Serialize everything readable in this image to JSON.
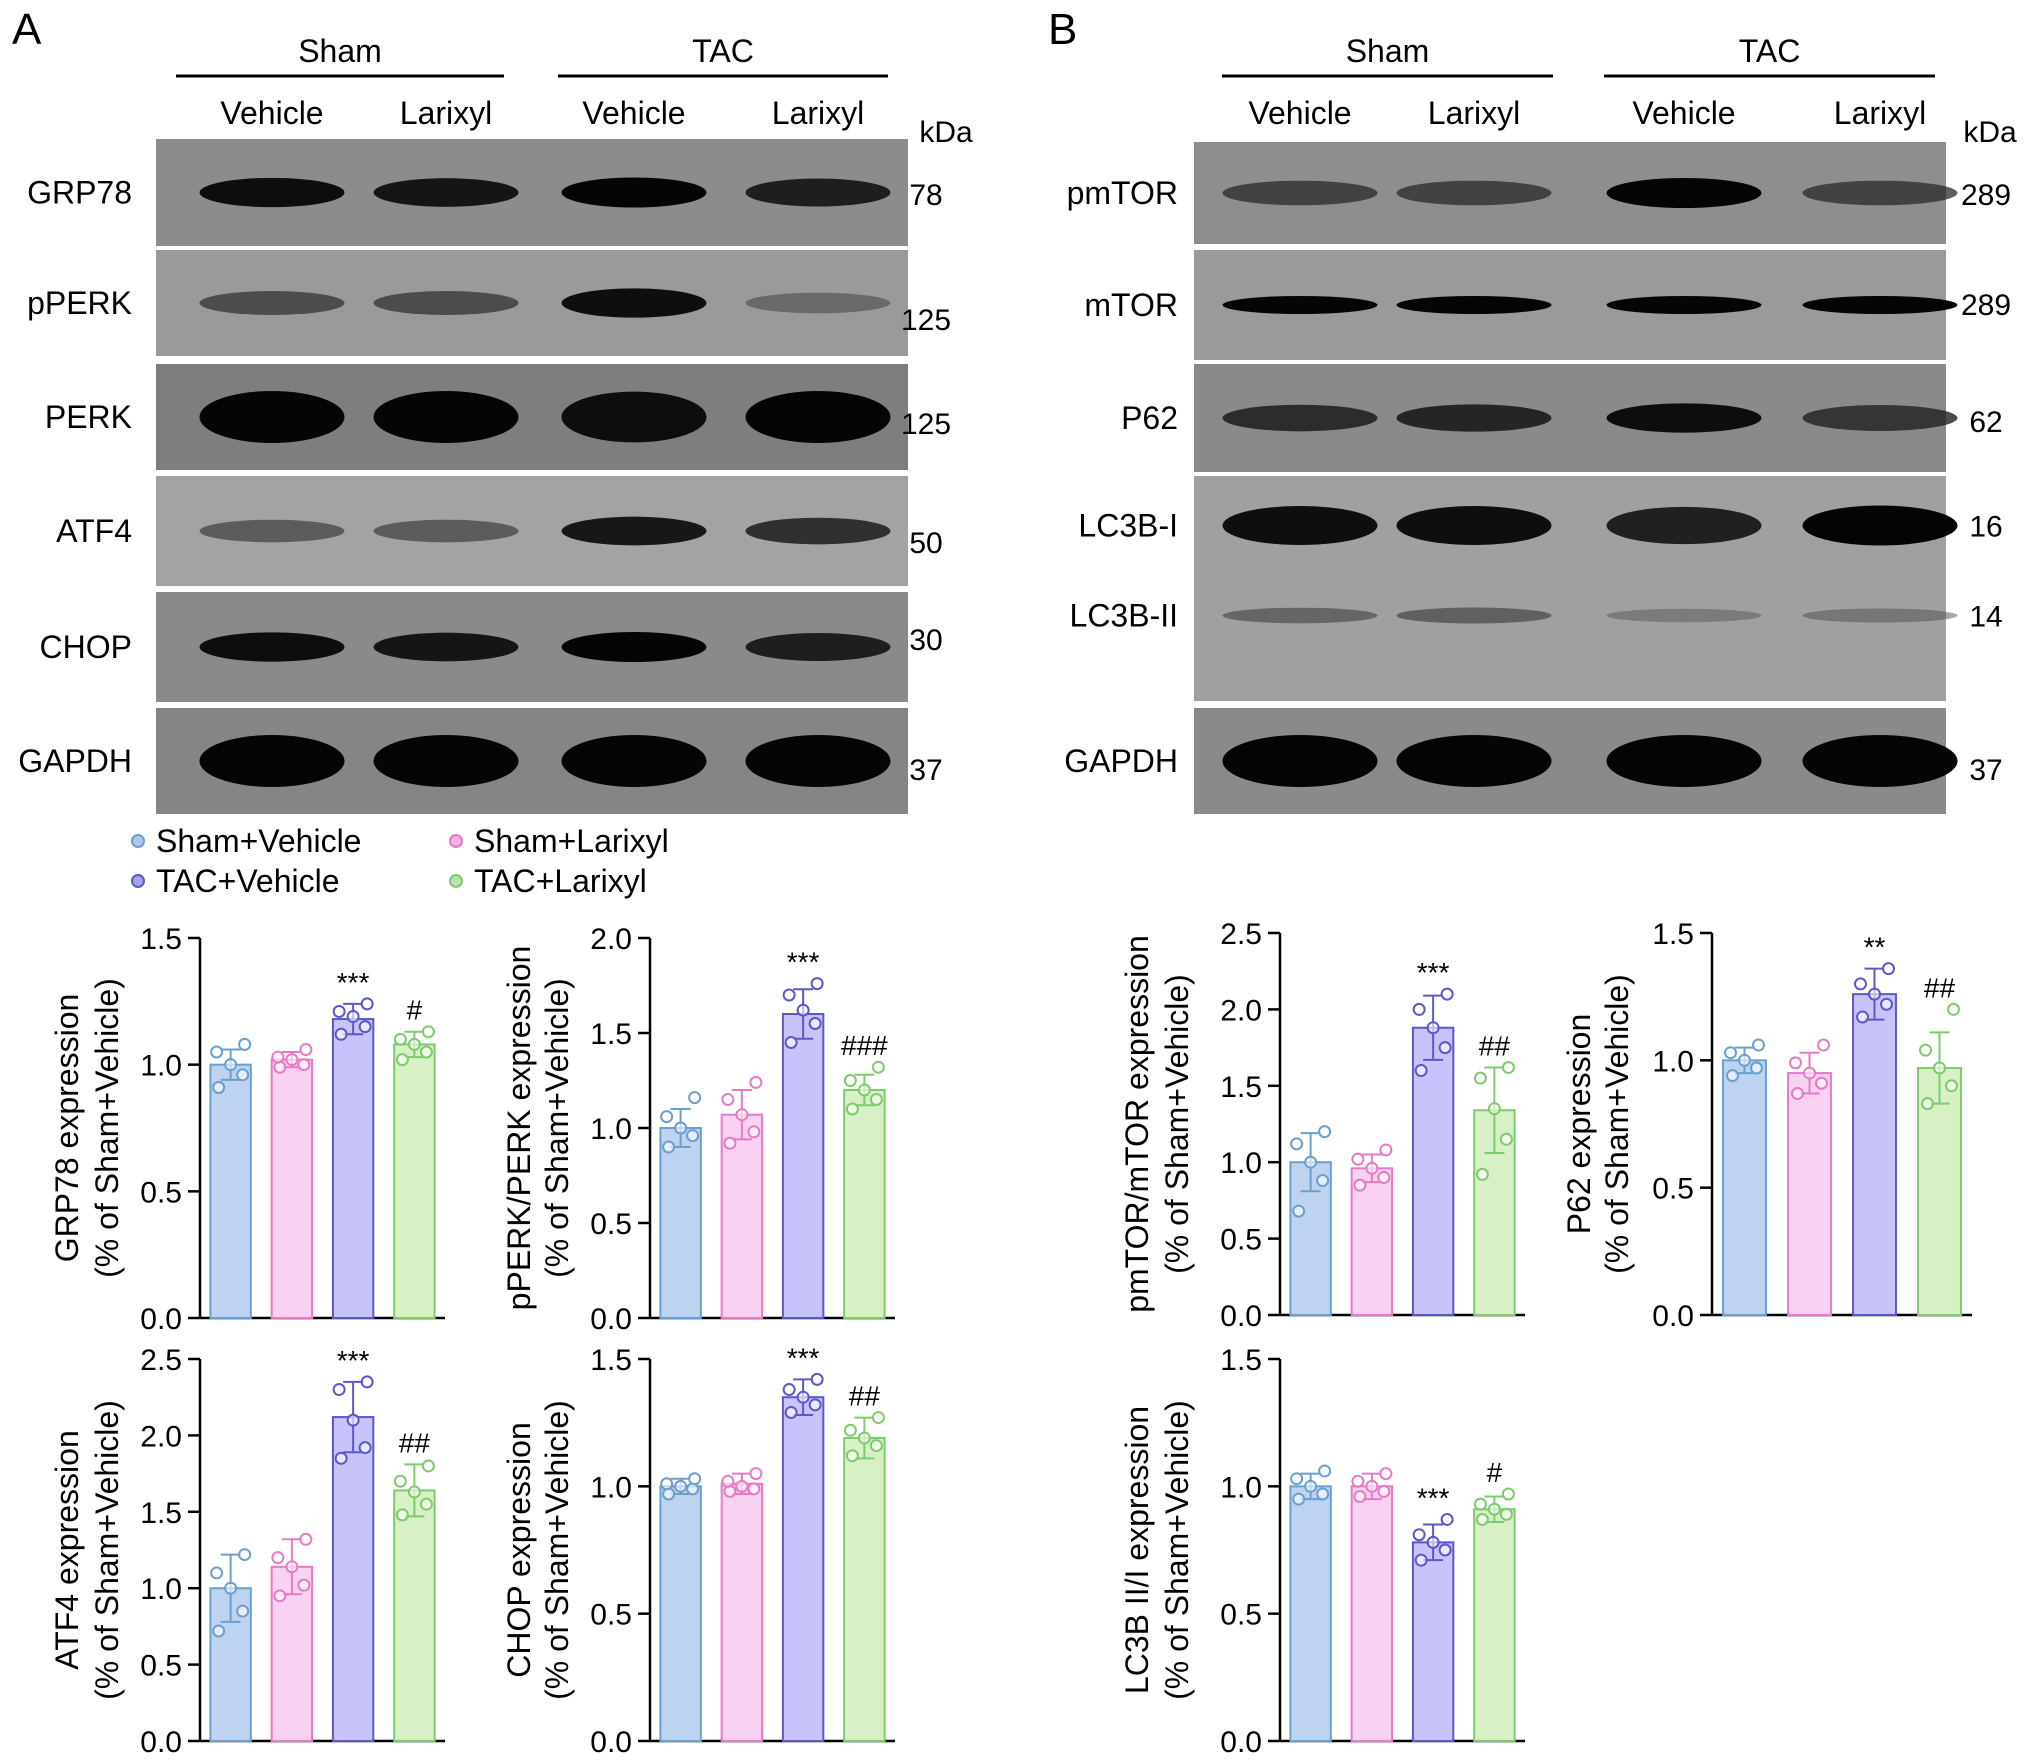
{
  "panels": {
    "A": {
      "letter": "A",
      "groups": [
        "Sham",
        "TAC"
      ],
      "lanes": [
        "Vehicle",
        "Larixyl",
        "Vehicle",
        "Larixyl"
      ],
      "kda_label": "kDa",
      "blots": [
        {
          "name": "GRP78",
          "kda": "78",
          "background": "#8c8c8c",
          "intensity": [
            0.95,
            0.9,
            1.0,
            0.85
          ],
          "lanes_shape": "band"
        },
        {
          "name": "pPERK",
          "kda": "125",
          "background": "#9a9a9a",
          "intensity": [
            0.55,
            0.55,
            0.95,
            0.3
          ],
          "lanes_shape": "band"
        },
        {
          "name": "PERK",
          "kda": "125",
          "background": "#7e7e7e",
          "intensity": [
            1.0,
            1.0,
            0.95,
            1.0
          ],
          "lanes_shape": "thick"
        },
        {
          "name": "ATF4",
          "kda": "50",
          "background": "#a3a3a3",
          "intensity": [
            0.45,
            0.45,
            0.9,
            0.75
          ],
          "lanes_shape": "band"
        },
        {
          "name": "CHOP",
          "kda": "30",
          "background": "#8a8a8a",
          "intensity": [
            0.95,
            0.9,
            1.0,
            0.85
          ],
          "lanes_shape": "band"
        },
        {
          "name": "GAPDH",
          "kda": "37",
          "background": "#858585",
          "intensity": [
            1.0,
            1.0,
            1.0,
            1.0
          ],
          "lanes_shape": "thick"
        }
      ]
    },
    "B": {
      "letter": "B",
      "groups": [
        "Sham",
        "TAC"
      ],
      "lanes": [
        "Vehicle",
        "Larixyl",
        "Vehicle",
        "Larixyl"
      ],
      "kda_label": "kDa",
      "blots": [
        {
          "name": "pmTOR",
          "kda": "289",
          "background": "#8e8e8e",
          "intensity": [
            0.6,
            0.6,
            1.0,
            0.6
          ],
          "lanes_shape": "band"
        },
        {
          "name": "mTOR",
          "kda": "289",
          "background": "#9a9a9a",
          "intensity": [
            1.0,
            1.0,
            1.0,
            1.0
          ],
          "lanes_shape": "thin"
        },
        {
          "name": "P62",
          "kda": "62",
          "background": "#8a8a8a",
          "intensity": [
            0.75,
            0.8,
            0.95,
            0.7
          ],
          "lanes_shape": "band"
        },
        {
          "name": "LC3B-I",
          "kda": "16",
          "second_name": "LC3B-II",
          "second_kda": "14",
          "background": "#a0a0a0",
          "intensity": [
            0.95,
            0.95,
            0.85,
            1.0
          ],
          "second_intensity": [
            0.35,
            0.4,
            0.15,
            0.2
          ],
          "lanes_shape": "double"
        },
        {
          "name": "GAPDH",
          "kda": "37",
          "background": "#8a8a8a",
          "intensity": [
            1.0,
            1.0,
            1.0,
            1.0
          ],
          "lanes_shape": "thick"
        }
      ]
    }
  },
  "legend": [
    {
      "label": "Sham+Vehicle",
      "color": "#6a9fd0"
    },
    {
      "label": "Sham+Larixyl",
      "color": "#e879c6"
    },
    {
      "label": "TAC+Vehicle",
      "color": "#5b58c9"
    },
    {
      "label": "TAC+Larixyl",
      "color": "#7ecb6d"
    }
  ],
  "colors": {
    "fills": [
      "#bdd3ef",
      "#fad2f1",
      "#c9c3fb",
      "#d7f0c6"
    ],
    "strokes": [
      "#6a9fd0",
      "#e879c6",
      "#5b58c9",
      "#7ecb6d"
    ]
  },
  "chart_data": [
    {
      "id": "grp78",
      "type": "bar",
      "categories": [
        "Sham+Vehicle",
        "Sham+Larixyl",
        "TAC+Vehicle",
        "TAC+Larixyl"
      ],
      "ylabel": [
        "GRP78 expression",
        "(% of Sham+Vehicle)"
      ],
      "ylim": [
        0,
        1.5
      ],
      "ticks": [
        "0.0",
        "0.5",
        "1.0",
        "1.5"
      ],
      "values": [
        1.0,
        1.02,
        1.18,
        1.08
      ],
      "errors": [
        0.06,
        0.03,
        0.06,
        0.05
      ],
      "points": [
        [
          0.91,
          0.96,
          1.0,
          1.05,
          1.08
        ],
        [
          0.99,
          1.0,
          1.02,
          1.03,
          1.06
        ],
        [
          1.12,
          1.15,
          1.19,
          1.21,
          1.24
        ],
        [
          1.02,
          1.05,
          1.08,
          1.1,
          1.13
        ]
      ],
      "significance": [
        "",
        "",
        "***",
        "#"
      ]
    },
    {
      "id": "pperk",
      "type": "bar",
      "categories": [
        "Sham+Vehicle",
        "Sham+Larixyl",
        "TAC+Vehicle",
        "TAC+Larixyl"
      ],
      "ylabel": [
        "pPERK/PERK expression",
        "(% of Sham+Vehicle)"
      ],
      "ylim": [
        0,
        2.0
      ],
      "ticks": [
        "0.0",
        "0.5",
        "1.0",
        "1.5",
        "2.0"
      ],
      "values": [
        1.0,
        1.07,
        1.6,
        1.2
      ],
      "errors": [
        0.1,
        0.13,
        0.13,
        0.08
      ],
      "points": [
        [
          0.9,
          0.96,
          1.0,
          1.06,
          1.16
        ],
        [
          0.92,
          0.98,
          1.07,
          1.15,
          1.24
        ],
        [
          1.45,
          1.55,
          1.62,
          1.7,
          1.76
        ],
        [
          1.1,
          1.15,
          1.2,
          1.25,
          1.32
        ]
      ],
      "significance": [
        "",
        "",
        "***",
        "###"
      ]
    },
    {
      "id": "atf4",
      "type": "bar",
      "categories": [
        "Sham+Vehicle",
        "Sham+Larixyl",
        "TAC+Vehicle",
        "TAC+Larixyl"
      ],
      "ylabel": [
        "ATF4 expression",
        "(% of Sham+Vehicle)"
      ],
      "ylim": [
        0,
        2.5
      ],
      "ticks": [
        "0.0",
        "0.5",
        "1.0",
        "1.5",
        "2.0",
        "2.5"
      ],
      "values": [
        1.0,
        1.14,
        2.12,
        1.64
      ],
      "errors": [
        0.22,
        0.18,
        0.23,
        0.17
      ],
      "points": [
        [
          0.72,
          0.85,
          1.0,
          1.1,
          1.22
        ],
        [
          0.95,
          1.02,
          1.14,
          1.2,
          1.32
        ],
        [
          1.85,
          1.92,
          2.1,
          2.3,
          2.35
        ],
        [
          1.48,
          1.55,
          1.63,
          1.7,
          1.8
        ]
      ],
      "significance": [
        "",
        "",
        "***",
        "##"
      ]
    },
    {
      "id": "chop",
      "type": "bar",
      "categories": [
        "Sham+Vehicle",
        "Sham+Larixyl",
        "TAC+Vehicle",
        "TAC+Larixyl"
      ],
      "ylabel": [
        "CHOP expression",
        "(% of Sham+Vehicle)"
      ],
      "ylim": [
        0,
        1.5
      ],
      "ticks": [
        "0.0",
        "0.5",
        "1.0",
        "1.5"
      ],
      "values": [
        1.0,
        1.01,
        1.35,
        1.19
      ],
      "errors": [
        0.03,
        0.04,
        0.07,
        0.08
      ],
      "points": [
        [
          0.97,
          0.99,
          1.0,
          1.01,
          1.03
        ],
        [
          0.98,
          0.99,
          1.0,
          1.02,
          1.05
        ],
        [
          1.29,
          1.32,
          1.35,
          1.38,
          1.42
        ],
        [
          1.12,
          1.16,
          1.19,
          1.22,
          1.27
        ]
      ],
      "significance": [
        "",
        "",
        "***",
        "##"
      ]
    },
    {
      "id": "pmtor",
      "type": "bar",
      "categories": [
        "Sham+Vehicle",
        "Sham+Larixyl",
        "TAC+Vehicle",
        "TAC+Larixyl"
      ],
      "ylabel": [
        "pmTOR/mTOR expression",
        "(% of Sham+Vehicle)"
      ],
      "ylim": [
        0,
        2.5
      ],
      "ticks": [
        "0.0",
        "0.5",
        "1.0",
        "1.5",
        "2.0",
        "2.5"
      ],
      "values": [
        1.0,
        0.96,
        1.88,
        1.34
      ],
      "errors": [
        0.19,
        0.09,
        0.21,
        0.28
      ],
      "points": [
        [
          0.68,
          0.88,
          1.0,
          1.12,
          1.2
        ],
        [
          0.85,
          0.9,
          0.96,
          1.02,
          1.08
        ],
        [
          1.6,
          1.75,
          1.88,
          2.0,
          2.1
        ],
        [
          0.92,
          1.15,
          1.35,
          1.55,
          1.62
        ]
      ],
      "significance": [
        "",
        "",
        "***",
        "##"
      ]
    },
    {
      "id": "p62",
      "type": "bar",
      "categories": [
        "Sham+Vehicle",
        "Sham+Larixyl",
        "TAC+Vehicle",
        "TAC+Larixyl"
      ],
      "ylabel": [
        "P62 expression",
        "(% of Sham+Vehicle)"
      ],
      "ylim": [
        0,
        1.5
      ],
      "ticks": [
        "0.0",
        "0.5",
        "1.0",
        "1.5"
      ],
      "values": [
        1.0,
        0.95,
        1.26,
        0.97
      ],
      "errors": [
        0.05,
        0.08,
        0.1,
        0.14
      ],
      "points": [
        [
          0.94,
          0.97,
          1.0,
          1.03,
          1.06
        ],
        [
          0.87,
          0.91,
          0.95,
          0.99,
          1.06
        ],
        [
          1.17,
          1.22,
          1.26,
          1.3,
          1.36
        ],
        [
          0.83,
          0.9,
          0.97,
          1.04,
          1.2
        ]
      ],
      "significance": [
        "",
        "",
        "**",
        "##"
      ]
    },
    {
      "id": "lc3b",
      "type": "bar",
      "categories": [
        "Sham+Vehicle",
        "Sham+Larixyl",
        "TAC+Vehicle",
        "TAC+Larixyl"
      ],
      "ylabel": [
        "LC3B II/I expression",
        "(% of Sham+Vehicle)"
      ],
      "ylim": [
        0,
        1.5
      ],
      "ticks": [
        "0.0",
        "0.5",
        "1.0",
        "1.5"
      ],
      "values": [
        1.0,
        1.0,
        0.78,
        0.91
      ],
      "errors": [
        0.05,
        0.05,
        0.07,
        0.05
      ],
      "points": [
        [
          0.95,
          0.97,
          1.0,
          1.03,
          1.06
        ],
        [
          0.96,
          0.98,
          1.0,
          1.02,
          1.05
        ],
        [
          0.71,
          0.75,
          0.78,
          0.81,
          0.87
        ],
        [
          0.87,
          0.89,
          0.91,
          0.93,
          0.97
        ]
      ],
      "significance": [
        "",
        "",
        "***",
        "#"
      ]
    }
  ]
}
